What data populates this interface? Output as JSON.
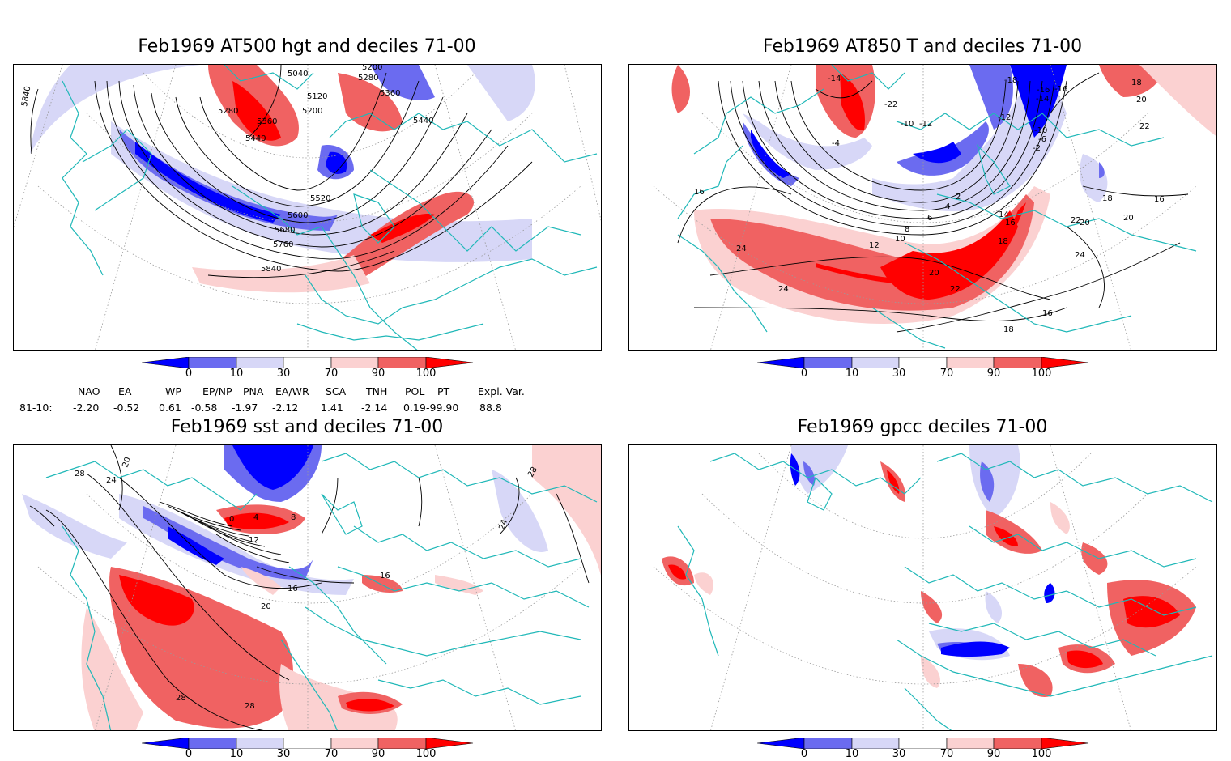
{
  "panels": [
    {
      "id": "p1",
      "title": "Feb1969 AT500 hgt and deciles 71-00",
      "contour_labels": [
        "5840",
        "5040",
        "5200",
        "5280",
        "5360",
        "5120",
        "5200",
        "5280",
        "5440",
        "5360",
        "5440",
        "5520",
        "5600",
        "5680",
        "5760",
        "5840"
      ]
    },
    {
      "id": "p2",
      "title": "Feb1969 AT850 T and deciles 71-00",
      "contour_labels": [
        "-14",
        "-22",
        "-10",
        "-12",
        "-18",
        "-16",
        "-14",
        "-12",
        "-10",
        "-6",
        "-4",
        "-2",
        "2",
        "4",
        "6",
        "8",
        "10",
        "12",
        "14",
        "16",
        "18",
        "20",
        "22",
        "24",
        "16",
        "18",
        "20",
        "22",
        "24",
        "-16",
        "20",
        "18",
        "16",
        "20",
        "18",
        "16",
        "24",
        "22"
      ]
    },
    {
      "id": "p3",
      "title": "Feb1969 sst and deciles 71-00",
      "contour_labels": [
        "28",
        "24",
        "20",
        "0",
        "4",
        "8",
        "12",
        "16",
        "16",
        "20",
        "28",
        "28",
        "24",
        "28"
      ]
    },
    {
      "id": "p4",
      "title": "Feb1969 gpcc deciles 71-00",
      "contour_labels": []
    }
  ],
  "colorbar": {
    "ticks": [
      "0",
      "10",
      "30",
      "70",
      "90",
      "100"
    ],
    "colors": {
      "d0": "#0000ff",
      "d1": "#6b6bf0",
      "d2": "#d7d7f7",
      "d3": "#ffffff",
      "d4": "#fbd1d1",
      "d5": "#f06262",
      "d6": "#ff0000"
    }
  },
  "indices": {
    "row_label": "81-10:",
    "names": [
      "NAO",
      "EA",
      "WP",
      "EP/NP",
      "PNA",
      "EA/WR",
      "SCA",
      "TNH",
      "POL",
      "PT",
      "Expl. Var."
    ],
    "values": [
      "-2.20",
      "-0.52",
      "0.61",
      "-0.58",
      "-1.97",
      "-2.12",
      "1.41",
      "-2.14",
      "0.19",
      "-99.90",
      "88.8"
    ]
  },
  "colors": {
    "coast": "#20b8b8",
    "contour": "#000000",
    "grid": "#9a9a9a"
  }
}
